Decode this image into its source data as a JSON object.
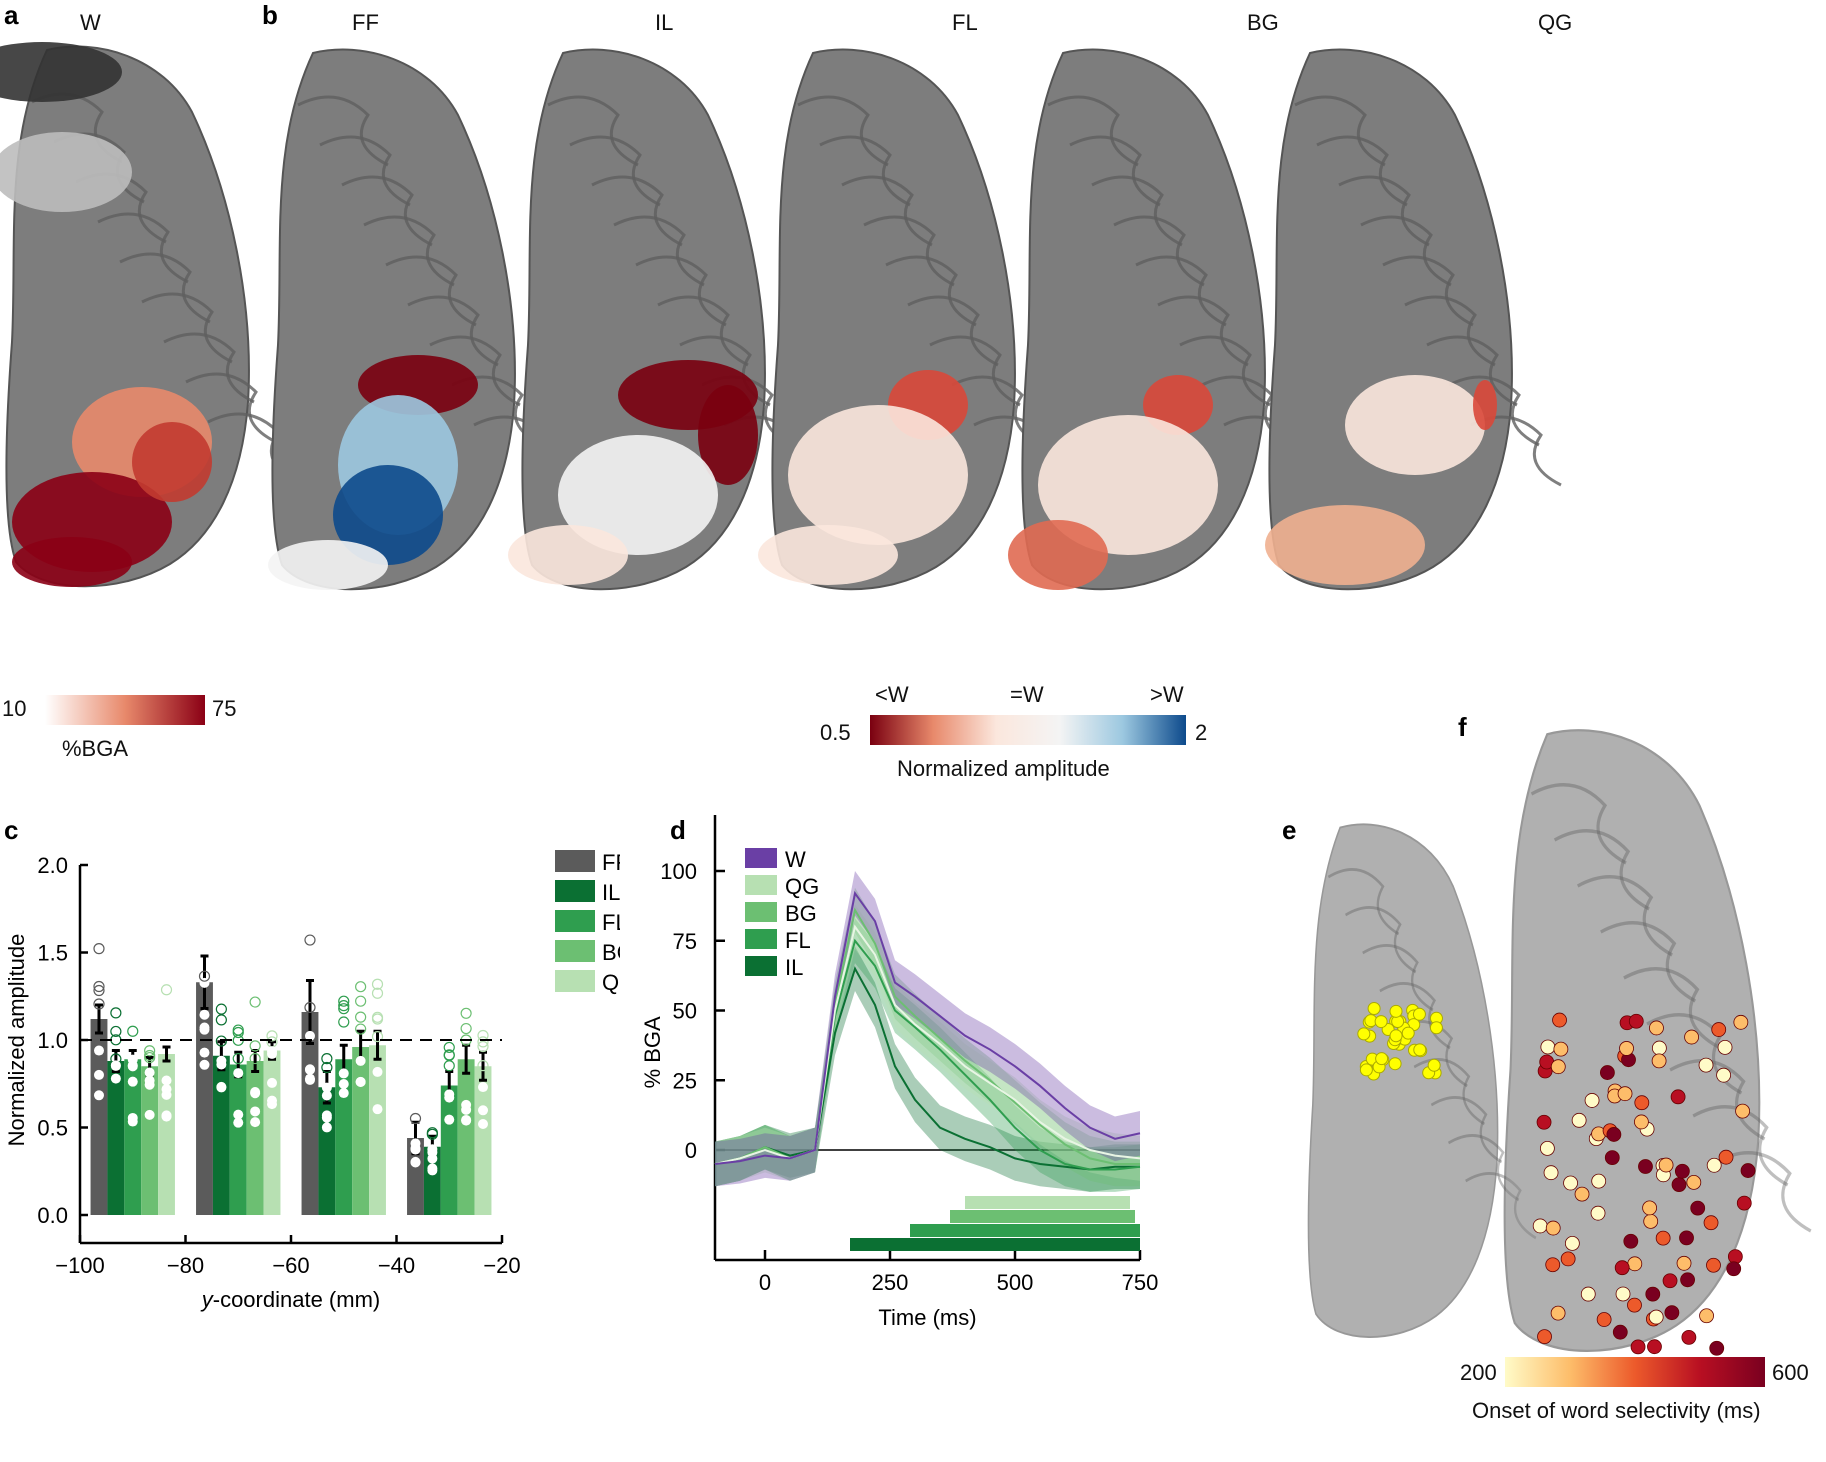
{
  "panel_labels": [
    "a",
    "b",
    "c",
    "d",
    "e",
    "f"
  ],
  "panel_a": {
    "title": "W",
    "colorbar": {
      "min": "10",
      "max": "75",
      "label": "%BGA",
      "colors": [
        "#ffffff",
        "#e8896b",
        "#8b0015"
      ]
    }
  },
  "panel_b": {
    "titles": [
      "FF",
      "IL",
      "FL",
      "BG",
      "QG"
    ],
    "colorbar": {
      "min": "0.5",
      "max": "2",
      "ticks": [
        "<W",
        "=W",
        ">W"
      ],
      "label": "Normalized amplitude",
      "colors": [
        "#7a0010",
        "#e8896b",
        "#fbe7dd",
        "#f4f4f4",
        "#9cc8e0",
        "#0d4a8c"
      ]
    }
  },
  "panel_f": {
    "colorbar": {
      "min": "200",
      "max": "600",
      "label": "Onset of word selectivity (ms)",
      "colors": [
        "#fffbc8",
        "#fdbd6a",
        "#ec5a2b",
        "#b80f22",
        "#7a0020"
      ]
    }
  },
  "dot_color_e": "#ffff00",
  "chart_data": [
    {
      "panel": "c",
      "type": "bar",
      "xlabel": "y-coordinate (mm)",
      "ylabel": "Normalized amplitude",
      "xlim": [
        -100,
        -20
      ],
      "ylim": [
        0,
        2.0
      ],
      "xticks": [
        -100,
        -80,
        -60,
        -40,
        -20
      ],
      "yticks": [
        0,
        0.5,
        1.0,
        1.5,
        2.0
      ],
      "reference_line": 1.0,
      "legend_placement": "top-right",
      "group_centers": [
        -90,
        -70,
        -50,
        -30
      ],
      "series": [
        {
          "name": "FF",
          "color": "#5b5b5b",
          "values": [
            1.12,
            1.33,
            1.16,
            0.44
          ],
          "errors": [
            0.08,
            0.15,
            0.18,
            0.09
          ]
        },
        {
          "name": "IL",
          "color": "#0b7033",
          "values": [
            0.88,
            0.91,
            0.73,
            0.39
          ],
          "errors": [
            0.06,
            0.08,
            0.09,
            0.06
          ]
        },
        {
          "name": "FL",
          "color": "#2f9e4f",
          "values": [
            0.89,
            0.86,
            0.89,
            0.74
          ],
          "errors": [
            0.05,
            0.07,
            0.08,
            0.08
          ]
        },
        {
          "name": "BG",
          "color": "#6cbf72",
          "values": [
            0.85,
            0.88,
            0.96,
            0.89
          ],
          "errors": [
            0.05,
            0.06,
            0.09,
            0.08
          ]
        },
        {
          "name": "QG",
          "color": "#b7e0b2",
          "values": [
            0.92,
            0.94,
            0.97,
            0.85
          ],
          "errors": [
            0.04,
            0.05,
            0.08,
            0.08
          ]
        }
      ]
    },
    {
      "panel": "d",
      "type": "line",
      "xlabel": "Time (ms)",
      "ylabel": "% BGA",
      "xlim": [
        -100,
        750
      ],
      "ylim": [
        -20,
        115
      ],
      "xticks": [
        0,
        250,
        500,
        750
      ],
      "yticks": [
        0,
        25,
        50,
        75,
        100
      ],
      "legend_placement": "top-left",
      "x": [
        -100,
        -50,
        0,
        50,
        100,
        140,
        180,
        220,
        260,
        300,
        350,
        400,
        450,
        500,
        550,
        600,
        650,
        700,
        750
      ],
      "series": [
        {
          "name": "W",
          "color": "#6a3fa5",
          "values": [
            -5,
            -4,
            -2,
            -3,
            0,
            55,
            92,
            82,
            60,
            55,
            48,
            41,
            36,
            30,
            23,
            15,
            8,
            4,
            6
          ]
        },
        {
          "name": "QG",
          "color": "#b7e0b2",
          "values": [
            -5,
            -3,
            0,
            -3,
            0,
            50,
            80,
            70,
            52,
            45,
            38,
            30,
            24,
            18,
            10,
            4,
            0,
            -2,
            -3
          ]
        },
        {
          "name": "BG",
          "color": "#6cbf72",
          "values": [
            -5,
            -3,
            1,
            -3,
            0,
            52,
            86,
            74,
            55,
            48,
            40,
            32,
            25,
            17,
            9,
            2,
            -3,
            -5,
            -5
          ]
        },
        {
          "name": "FL",
          "color": "#2f9e4f",
          "values": [
            -5,
            -3,
            1,
            -3,
            0,
            48,
            75,
            66,
            50,
            44,
            36,
            27,
            18,
            8,
            0,
            -5,
            -7,
            -7,
            -6
          ]
        },
        {
          "name": "IL",
          "color": "#0b7033",
          "values": [
            -5,
            -3,
            1,
            -2,
            0,
            42,
            65,
            52,
            30,
            18,
            8,
            4,
            1,
            -3,
            -5,
            -6,
            -7,
            -6,
            -6
          ]
        }
      ],
      "significance": [
        {
          "name": "QG",
          "start": 400,
          "end": 730
        },
        {
          "name": "BG",
          "start": 370,
          "end": 740
        },
        {
          "name": "FL",
          "start": 290,
          "end": 750
        },
        {
          "name": "IL",
          "start": 170,
          "end": 750
        }
      ]
    }
  ]
}
